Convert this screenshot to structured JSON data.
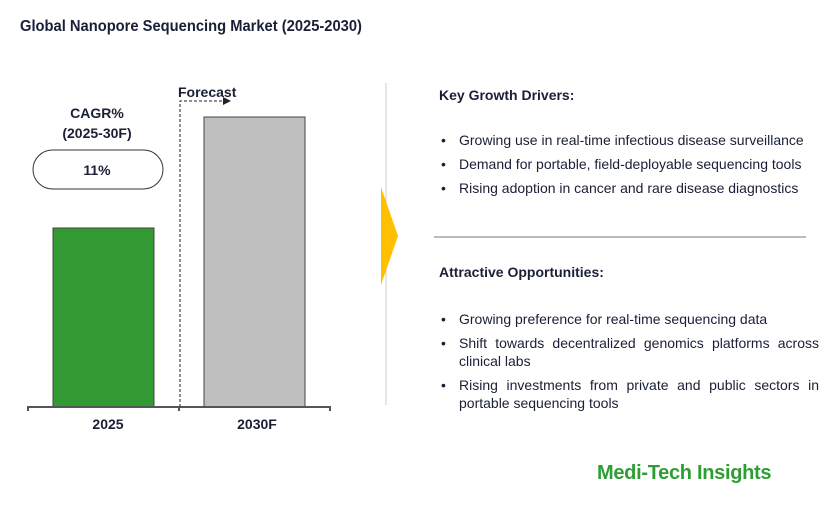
{
  "title": "Global Nanopore Sequencing Market (2025-2030)",
  "chart_data": {
    "type": "bar",
    "categories": [
      "2025",
      "2030F"
    ],
    "values": [
      1,
      1.62
    ],
    "colors": [
      "#339933",
      "#bfbfbf"
    ],
    "forecast_label": "Forecast",
    "cagr_label": "CAGR%",
    "cagr_period": "(2025-30F)",
    "cagr_value": "11%",
    "grid": false
  },
  "drivers": {
    "heading": "Key Growth Drivers:",
    "items": [
      "Growing use in real-time infectious disease surveillance",
      "Demand for portable, field-deployable sequencing tools",
      "Rising adoption in cancer and rare disease diagnostics"
    ]
  },
  "opportunities": {
    "heading": "Attractive Opportunities:",
    "items": [
      "Growing preference for real-time sequencing data",
      "Shift towards decentralized genomics platforms across clinical labs",
      "Rising investments from private and public sectors in portable sequencing tools"
    ]
  },
  "logo": "Medi-Tech Insights",
  "arrow_color": "#ffc000"
}
